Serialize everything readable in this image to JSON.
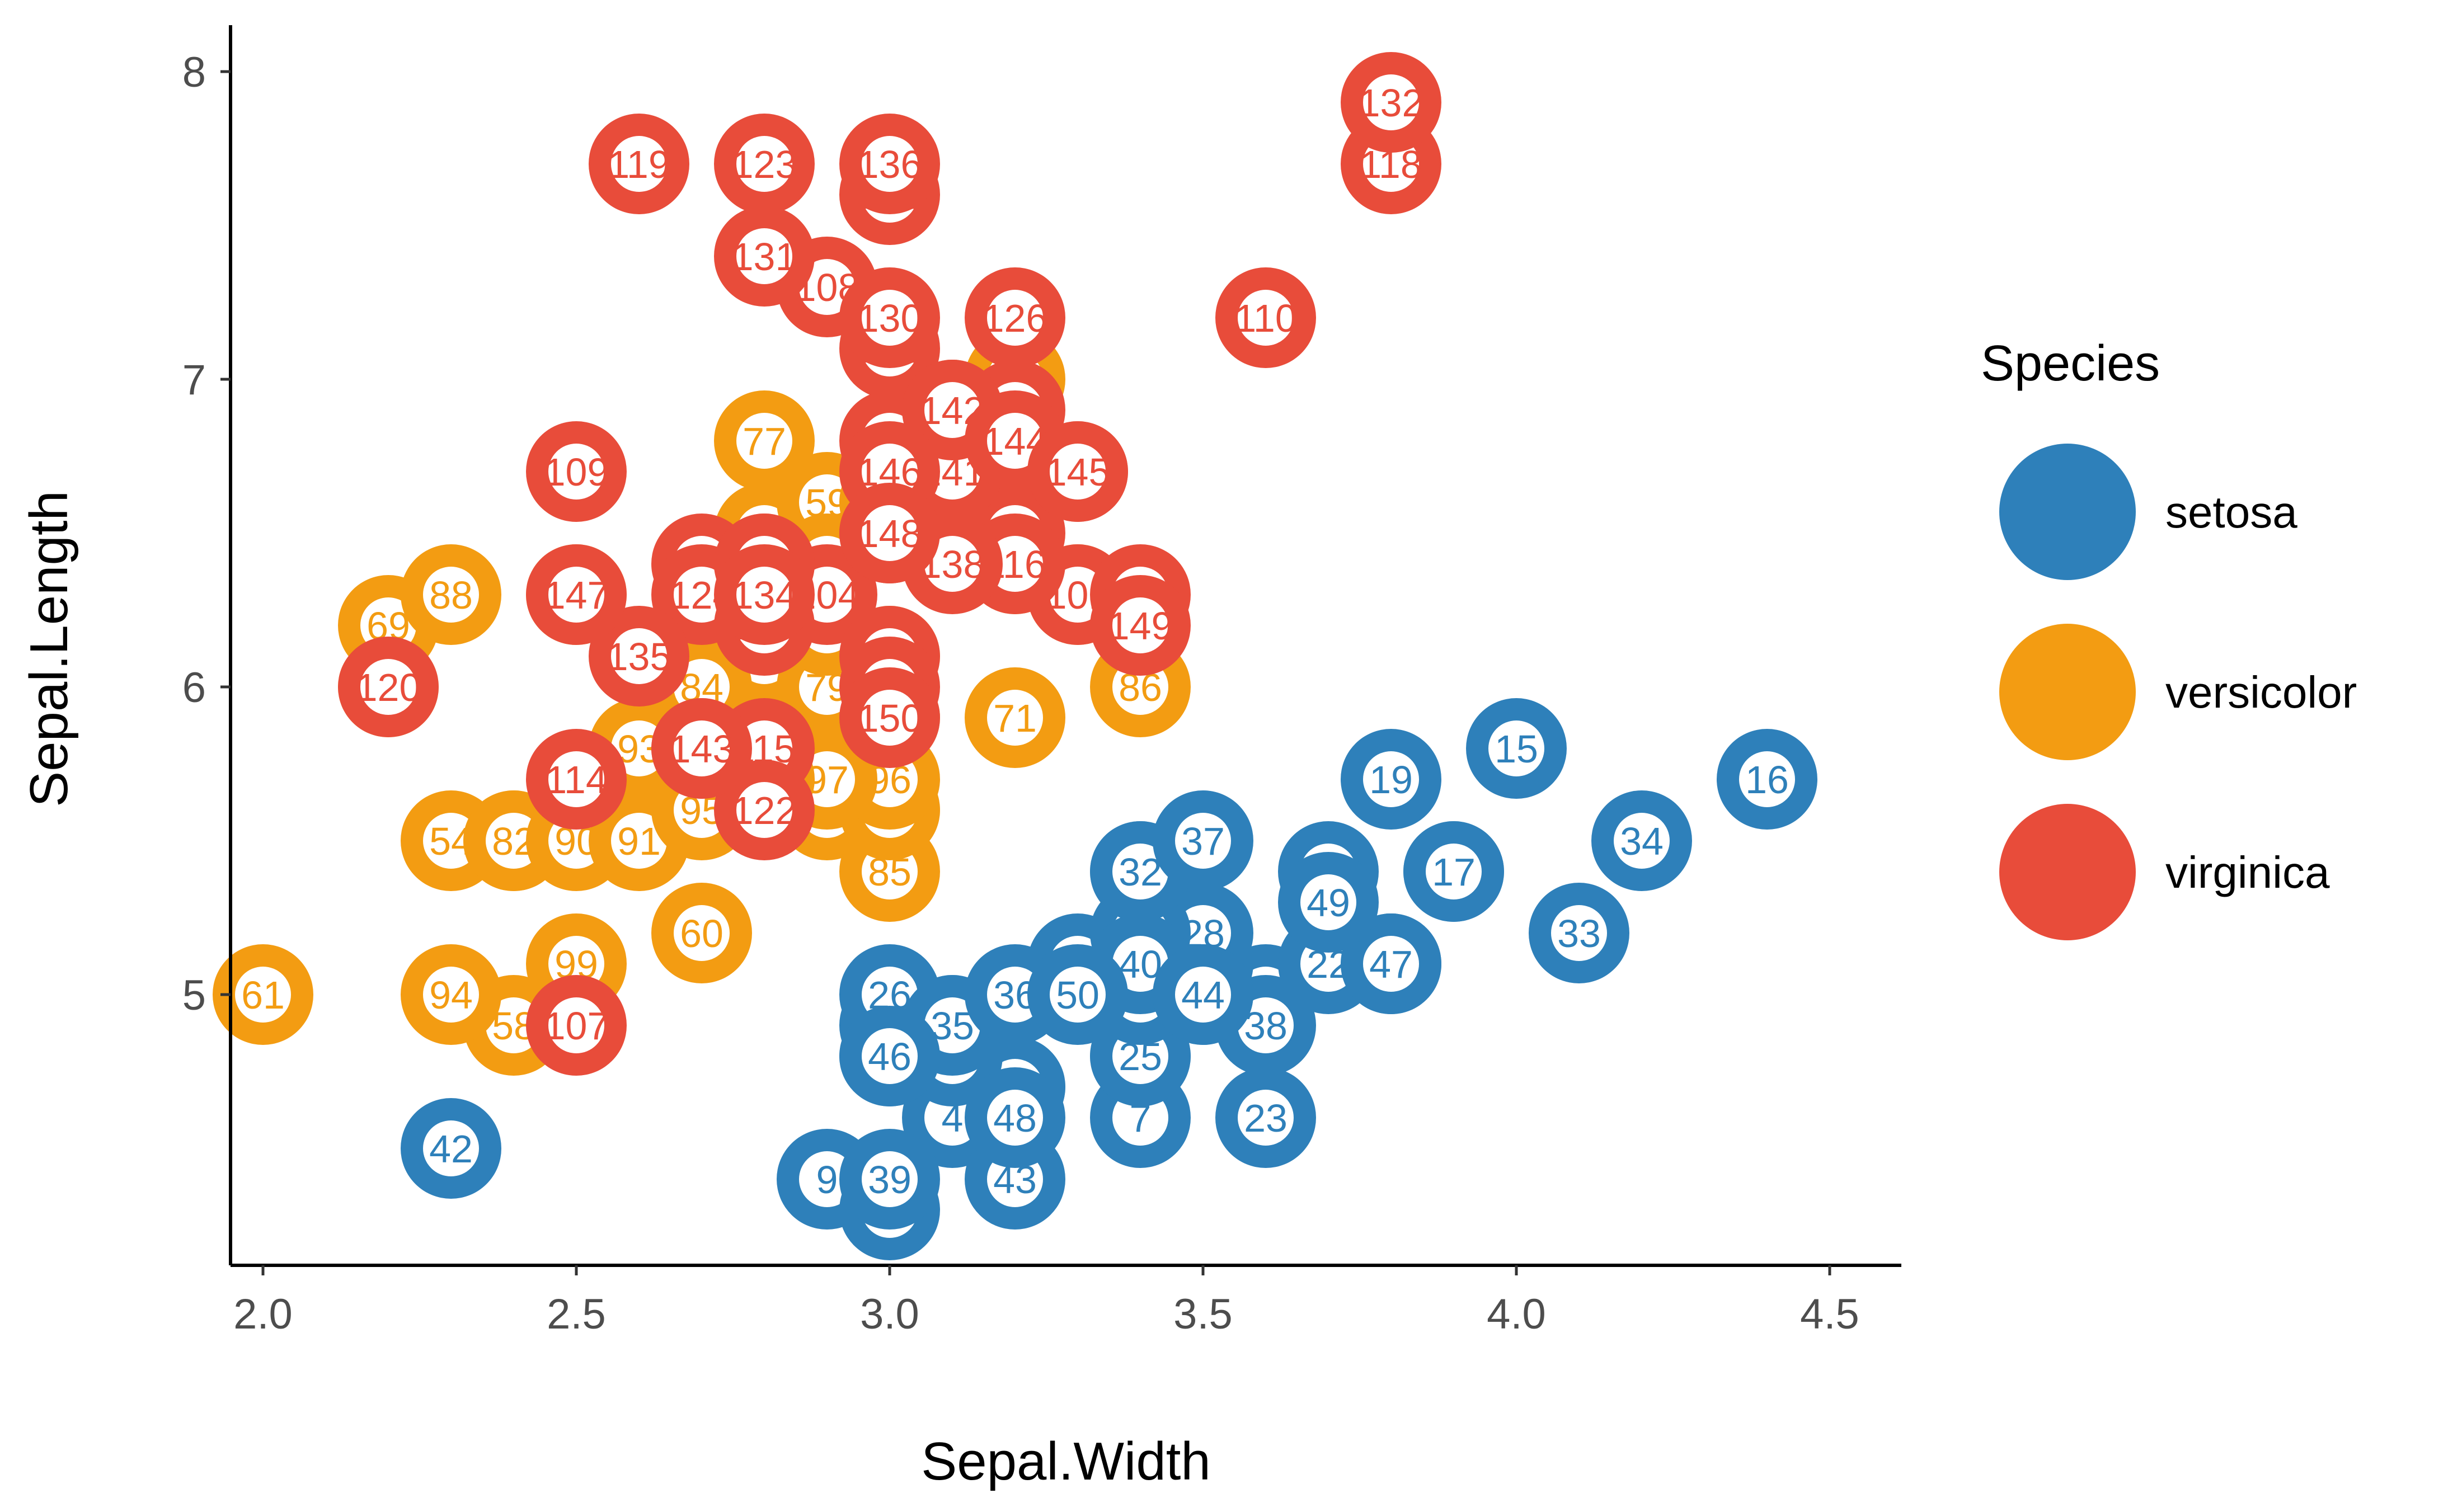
{
  "chart_data": {
    "type": "scatter",
    "xlabel": "Sepal.Width",
    "ylabel": "Sepal.Length",
    "xlim": [
      1.95,
      4.6
    ],
    "ylim": [
      4.15,
      8.15
    ],
    "x_ticks": [
      2.0,
      2.5,
      3.0,
      3.5,
      4.0,
      4.5
    ],
    "x_tick_labels": [
      "2.0",
      "2.5",
      "3.0",
      "3.5",
      "4.0",
      "4.5"
    ],
    "y_ticks": [
      5,
      6,
      7,
      8
    ],
    "y_tick_labels": [
      "5",
      "6",
      "7",
      "8"
    ],
    "grid": false,
    "legend": {
      "title": "Species",
      "position": "right",
      "entries": [
        "setosa",
        "versicolor",
        "virginica"
      ]
    },
    "colors": {
      "setosa": "#2E80BA",
      "versicolor": "#F39C12",
      "virginica": "#E84C3A"
    },
    "series": [
      {
        "name": "setosa",
        "points": [
          {
            "id": "1",
            "x": 3.5,
            "y": 5.1
          },
          {
            "id": "2",
            "x": 3.0,
            "y": 4.9
          },
          {
            "id": "3",
            "x": 3.2,
            "y": 4.7
          },
          {
            "id": "4",
            "x": 3.1,
            "y": 4.6
          },
          {
            "id": "5",
            "x": 3.6,
            "y": 5.0
          },
          {
            "id": "6",
            "x": 3.9,
            "y": 5.4
          },
          {
            "id": "7",
            "x": 3.4,
            "y": 4.6
          },
          {
            "id": "8",
            "x": 3.4,
            "y": 5.0
          },
          {
            "id": "9",
            "x": 2.9,
            "y": 4.4
          },
          {
            "id": "10",
            "x": 3.1,
            "y": 4.9
          },
          {
            "id": "11",
            "x": 3.7,
            "y": 5.4
          },
          {
            "id": "12",
            "x": 3.4,
            "y": 4.8
          },
          {
            "id": "13",
            "x": 3.0,
            "y": 4.8
          },
          {
            "id": "14",
            "x": 3.0,
            "y": 4.3
          },
          {
            "id": "15",
            "x": 4.0,
            "y": 5.8
          },
          {
            "id": "16",
            "x": 4.4,
            "y": 5.7
          },
          {
            "id": "17",
            "x": 3.9,
            "y": 5.4
          },
          {
            "id": "18",
            "x": 3.5,
            "y": 5.1
          },
          {
            "id": "19",
            "x": 3.8,
            "y": 5.7
          },
          {
            "id": "20",
            "x": 3.8,
            "y": 5.1
          },
          {
            "id": "21",
            "x": 3.4,
            "y": 5.4
          },
          {
            "id": "22",
            "x": 3.7,
            "y": 5.1
          },
          {
            "id": "23",
            "x": 3.6,
            "y": 4.6
          },
          {
            "id": "24",
            "x": 3.3,
            "y": 5.1
          },
          {
            "id": "25",
            "x": 3.4,
            "y": 4.8
          },
          {
            "id": "26",
            "x": 3.0,
            "y": 5.0
          },
          {
            "id": "27",
            "x": 3.4,
            "y": 5.0
          },
          {
            "id": "28",
            "x": 3.5,
            "y": 5.2
          },
          {
            "id": "29",
            "x": 3.4,
            "y": 5.2
          },
          {
            "id": "30",
            "x": 3.2,
            "y": 4.7
          },
          {
            "id": "31",
            "x": 3.1,
            "y": 4.8
          },
          {
            "id": "32",
            "x": 3.4,
            "y": 5.4
          },
          {
            "id": "33",
            "x": 4.1,
            "y": 5.2
          },
          {
            "id": "34",
            "x": 4.2,
            "y": 5.5
          },
          {
            "id": "35",
            "x": 3.1,
            "y": 4.9
          },
          {
            "id": "36",
            "x": 3.2,
            "y": 5.0
          },
          {
            "id": "37",
            "x": 3.5,
            "y": 5.5
          },
          {
            "id": "38",
            "x": 3.6,
            "y": 4.9
          },
          {
            "id": "39",
            "x": 3.0,
            "y": 4.4
          },
          {
            "id": "40",
            "x": 3.4,
            "y": 5.1
          },
          {
            "id": "41",
            "x": 3.5,
            "y": 5.0
          },
          {
            "id": "42",
            "x": 2.3,
            "y": 4.5
          },
          {
            "id": "43",
            "x": 3.2,
            "y": 4.4
          },
          {
            "id": "44",
            "x": 3.5,
            "y": 5.0
          },
          {
            "id": "45",
            "x": 3.8,
            "y": 5.1
          },
          {
            "id": "46",
            "x": 3.0,
            "y": 4.8
          },
          {
            "id": "47",
            "x": 3.8,
            "y": 5.1
          },
          {
            "id": "48",
            "x": 3.2,
            "y": 4.6
          },
          {
            "id": "49",
            "x": 3.7,
            "y": 5.3
          },
          {
            "id": "50",
            "x": 3.3,
            "y": 5.0
          }
        ]
      },
      {
        "name": "versicolor",
        "points": [
          {
            "id": "51",
            "x": 3.2,
            "y": 7.0
          },
          {
            "id": "52",
            "x": 3.2,
            "y": 6.4
          },
          {
            "id": "53",
            "x": 3.1,
            "y": 6.9
          },
          {
            "id": "54",
            "x": 2.3,
            "y": 5.5
          },
          {
            "id": "55",
            "x": 2.8,
            "y": 6.5
          },
          {
            "id": "56",
            "x": 2.8,
            "y": 5.7
          },
          {
            "id": "57",
            "x": 3.3,
            "y": 6.3
          },
          {
            "id": "58",
            "x": 2.4,
            "y": 4.9
          },
          {
            "id": "59",
            "x": 2.9,
            "y": 6.6
          },
          {
            "id": "60",
            "x": 2.7,
            "y": 5.2
          },
          {
            "id": "61",
            "x": 2.0,
            "y": 5.0
          },
          {
            "id": "62",
            "x": 3.0,
            "y": 5.9
          },
          {
            "id": "63",
            "x": 2.2,
            "y": 6.0
          },
          {
            "id": "64",
            "x": 2.9,
            "y": 6.1
          },
          {
            "id": "65",
            "x": 2.9,
            "y": 5.6
          },
          {
            "id": "66",
            "x": 3.1,
            "y": 6.7
          },
          {
            "id": "67",
            "x": 3.0,
            "y": 5.6
          },
          {
            "id": "68",
            "x": 2.7,
            "y": 5.8
          },
          {
            "id": "69",
            "x": 2.2,
            "y": 6.2
          },
          {
            "id": "70",
            "x": 2.5,
            "y": 5.6
          },
          {
            "id": "71",
            "x": 3.2,
            "y": 5.9
          },
          {
            "id": "72",
            "x": 2.8,
            "y": 6.1
          },
          {
            "id": "73",
            "x": 2.5,
            "y": 6.3
          },
          {
            "id": "74",
            "x": 2.8,
            "y": 6.1
          },
          {
            "id": "75",
            "x": 2.9,
            "y": 6.4
          },
          {
            "id": "76",
            "x": 3.0,
            "y": 6.6
          },
          {
            "id": "77",
            "x": 2.8,
            "y": 6.8
          },
          {
            "id": "78",
            "x": 3.0,
            "y": 6.7
          },
          {
            "id": "79",
            "x": 2.9,
            "y": 6.0
          },
          {
            "id": "80",
            "x": 2.6,
            "y": 5.7
          },
          {
            "id": "81",
            "x": 2.4,
            "y": 5.5
          },
          {
            "id": "82",
            "x": 2.4,
            "y": 5.5
          },
          {
            "id": "83",
            "x": 2.7,
            "y": 5.8
          },
          {
            "id": "84",
            "x": 2.7,
            "y": 6.0
          },
          {
            "id": "85",
            "x": 3.0,
            "y": 5.4
          },
          {
            "id": "86",
            "x": 3.4,
            "y": 6.0
          },
          {
            "id": "87",
            "x": 3.1,
            "y": 6.7
          },
          {
            "id": "88",
            "x": 2.3,
            "y": 6.3
          },
          {
            "id": "89",
            "x": 3.0,
            "y": 5.6
          },
          {
            "id": "90",
            "x": 2.5,
            "y": 5.5
          },
          {
            "id": "91",
            "x": 2.6,
            "y": 5.5
          },
          {
            "id": "92",
            "x": 3.0,
            "y": 6.1
          },
          {
            "id": "93",
            "x": 2.6,
            "y": 5.8
          },
          {
            "id": "94",
            "x": 2.3,
            "y": 5.0
          },
          {
            "id": "95",
            "x": 2.7,
            "y": 5.6
          },
          {
            "id": "96",
            "x": 3.0,
            "y": 5.7
          },
          {
            "id": "97",
            "x": 2.9,
            "y": 5.7
          },
          {
            "id": "98",
            "x": 2.9,
            "y": 6.2
          },
          {
            "id": "99",
            "x": 2.5,
            "y": 5.1
          },
          {
            "id": "100",
            "x": 2.8,
            "y": 5.7
          }
        ]
      },
      {
        "name": "virginica",
        "points": [
          {
            "id": "101",
            "x": 3.3,
            "y": 6.3
          },
          {
            "id": "102",
            "x": 2.7,
            "y": 5.8
          },
          {
            "id": "103",
            "x": 3.0,
            "y": 7.1
          },
          {
            "id": "104",
            "x": 2.9,
            "y": 6.3
          },
          {
            "id": "105",
            "x": 3.0,
            "y": 6.5
          },
          {
            "id": "106",
            "x": 3.0,
            "y": 7.6
          },
          {
            "id": "107",
            "x": 2.5,
            "y": 4.9
          },
          {
            "id": "108",
            "x": 2.9,
            "y": 7.3
          },
          {
            "id": "109",
            "x": 2.5,
            "y": 6.7
          },
          {
            "id": "110",
            "x": 3.6,
            "y": 7.2
          },
          {
            "id": "111",
            "x": 3.2,
            "y": 6.5
          },
          {
            "id": "112",
            "x": 2.7,
            "y": 6.4
          },
          {
            "id": "113",
            "x": 3.0,
            "y": 6.8
          },
          {
            "id": "114",
            "x": 2.5,
            "y": 5.7
          },
          {
            "id": "115",
            "x": 2.8,
            "y": 5.8
          },
          {
            "id": "116",
            "x": 3.2,
            "y": 6.4
          },
          {
            "id": "117",
            "x": 3.0,
            "y": 6.5
          },
          {
            "id": "118",
            "x": 3.8,
            "y": 7.7
          },
          {
            "id": "119",
            "x": 2.6,
            "y": 7.7
          },
          {
            "id": "120",
            "x": 2.2,
            "y": 6.0
          },
          {
            "id": "121",
            "x": 3.2,
            "y": 6.9
          },
          {
            "id": "122",
            "x": 2.8,
            "y": 5.6
          },
          {
            "id": "123",
            "x": 2.8,
            "y": 7.7
          },
          {
            "id": "124",
            "x": 2.7,
            "y": 6.3
          },
          {
            "id": "125",
            "x": 3.3,
            "y": 6.7
          },
          {
            "id": "126",
            "x": 3.2,
            "y": 7.2
          },
          {
            "id": "127",
            "x": 2.8,
            "y": 6.2
          },
          {
            "id": "128",
            "x": 3.0,
            "y": 6.1
          },
          {
            "id": "129",
            "x": 2.8,
            "y": 6.4
          },
          {
            "id": "130",
            "x": 3.0,
            "y": 7.2
          },
          {
            "id": "131",
            "x": 2.8,
            "y": 7.4
          },
          {
            "id": "132",
            "x": 3.8,
            "y": 7.9
          },
          {
            "id": "133",
            "x": 2.8,
            "y": 6.4
          },
          {
            "id": "134",
            "x": 2.8,
            "y": 6.3
          },
          {
            "id": "135",
            "x": 2.6,
            "y": 6.1
          },
          {
            "id": "136",
            "x": 3.0,
            "y": 7.7
          },
          {
            "id": "137",
            "x": 3.4,
            "y": 6.3
          },
          {
            "id": "138",
            "x": 3.1,
            "y": 6.4
          },
          {
            "id": "139",
            "x": 3.0,
            "y": 6.0
          },
          {
            "id": "140",
            "x": 3.1,
            "y": 6.9
          },
          {
            "id": "141",
            "x": 3.1,
            "y": 6.7
          },
          {
            "id": "142",
            "x": 3.1,
            "y": 6.9
          },
          {
            "id": "143",
            "x": 2.7,
            "y": 5.8
          },
          {
            "id": "144",
            "x": 3.2,
            "y": 6.8
          },
          {
            "id": "145",
            "x": 3.3,
            "y": 6.7
          },
          {
            "id": "146",
            "x": 3.0,
            "y": 6.7
          },
          {
            "id": "147",
            "x": 2.5,
            "y": 6.3
          },
          {
            "id": "148",
            "x": 3.0,
            "y": 6.5
          },
          {
            "id": "149",
            "x": 3.4,
            "y": 6.2
          },
          {
            "id": "150",
            "x": 3.0,
            "y": 5.9
          }
        ]
      }
    ]
  }
}
